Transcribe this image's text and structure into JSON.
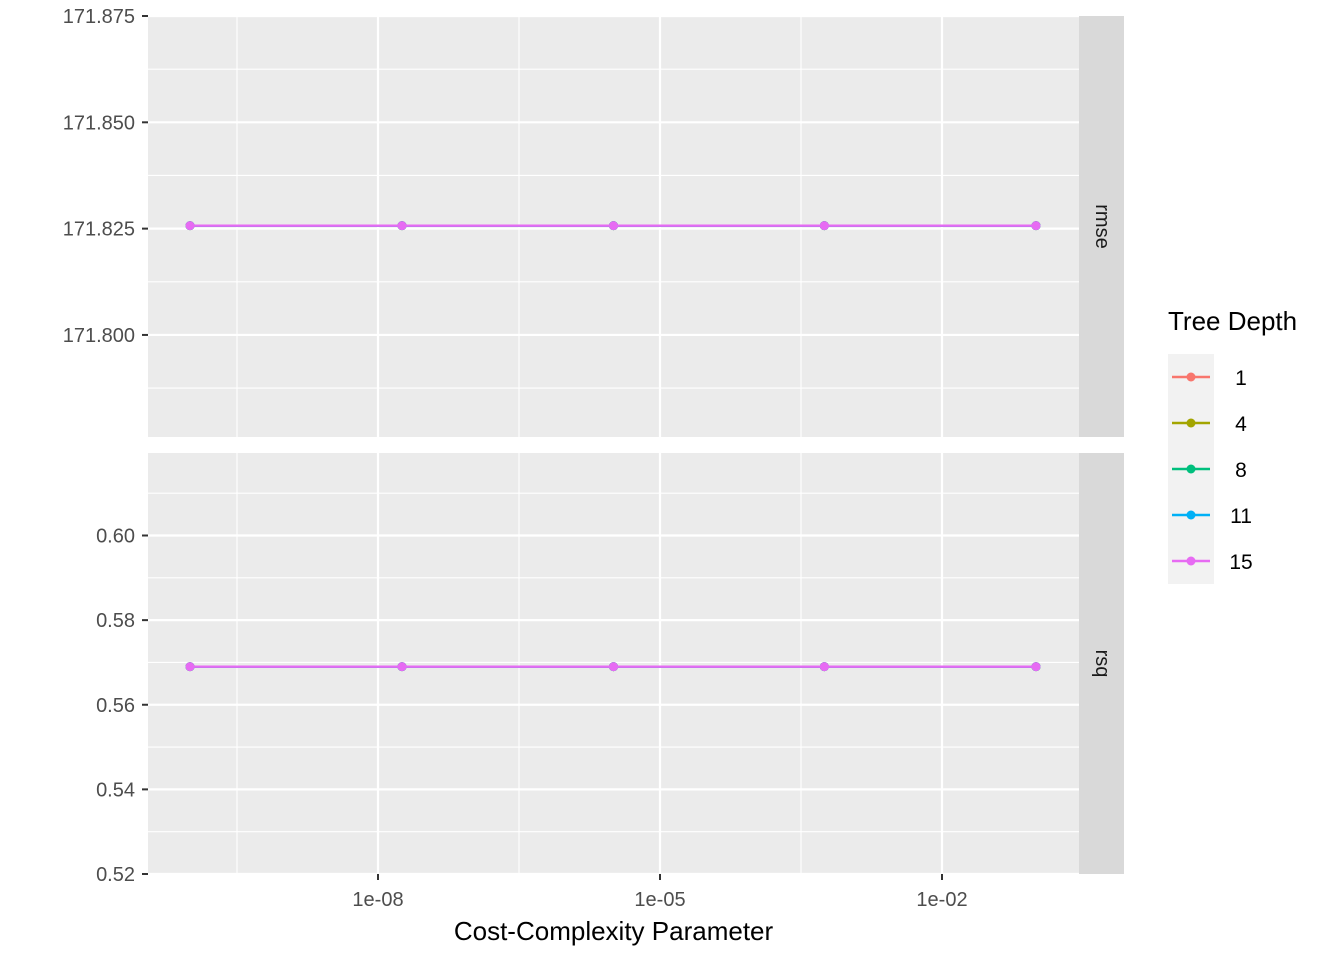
{
  "chart_data": {
    "type": "line",
    "xlabel": "Cost-Complexity Parameter",
    "x_scale": "log10",
    "x_ticks": [
      "1e-08",
      "1e-05",
      "1e-02"
    ],
    "x": [
      1e-10,
      1.8e-08,
      3.2e-06,
      0.00056,
      0.1
    ],
    "legend": {
      "title": "Tree Depth",
      "position": "right",
      "entries": [
        {
          "label": "1",
          "color": "#F8766D"
        },
        {
          "label": "4",
          "color": "#A3A500"
        },
        {
          "label": "8",
          "color": "#00BF7D"
        },
        {
          "label": "11",
          "color": "#00B0F6"
        },
        {
          "label": "15",
          "color": "#E76BF3"
        }
      ]
    },
    "facets": [
      {
        "strip": "rmse",
        "y_ticks": [
          "171.800",
          "171.825",
          "171.850",
          "171.875"
        ],
        "ylim": [
          171.776,
          171.875
        ],
        "series": [
          {
            "name": "1",
            "values": [
              171.8257,
              171.8257,
              171.8257,
              171.8257,
              171.8257
            ]
          },
          {
            "name": "4",
            "values": [
              171.8257,
              171.8257,
              171.8257,
              171.8257,
              171.8257
            ]
          },
          {
            "name": "8",
            "values": [
              171.8257,
              171.8257,
              171.8257,
              171.8257,
              171.8257
            ]
          },
          {
            "name": "11",
            "values": [
              171.8257,
              171.8257,
              171.8257,
              171.8257,
              171.8257
            ]
          },
          {
            "name": "15",
            "values": [
              171.8257,
              171.8257,
              171.8257,
              171.8257,
              171.8257
            ]
          }
        ]
      },
      {
        "strip": "rsq",
        "y_ticks": [
          "0.52",
          "0.54",
          "0.56",
          "0.58",
          "0.60"
        ],
        "ylim": [
          0.52,
          0.6195
        ],
        "series": [
          {
            "name": "1",
            "values": [
              0.569,
              0.569,
              0.569,
              0.569,
              0.569
            ]
          },
          {
            "name": "4",
            "values": [
              0.569,
              0.569,
              0.569,
              0.569,
              0.569
            ]
          },
          {
            "name": "8",
            "values": [
              0.569,
              0.569,
              0.569,
              0.569,
              0.569
            ]
          },
          {
            "name": "11",
            "values": [
              0.569,
              0.569,
              0.569,
              0.569,
              0.569
            ]
          },
          {
            "name": "15",
            "values": [
              0.569,
              0.569,
              0.569,
              0.569,
              0.569
            ]
          }
        ]
      }
    ],
    "grid": true
  }
}
